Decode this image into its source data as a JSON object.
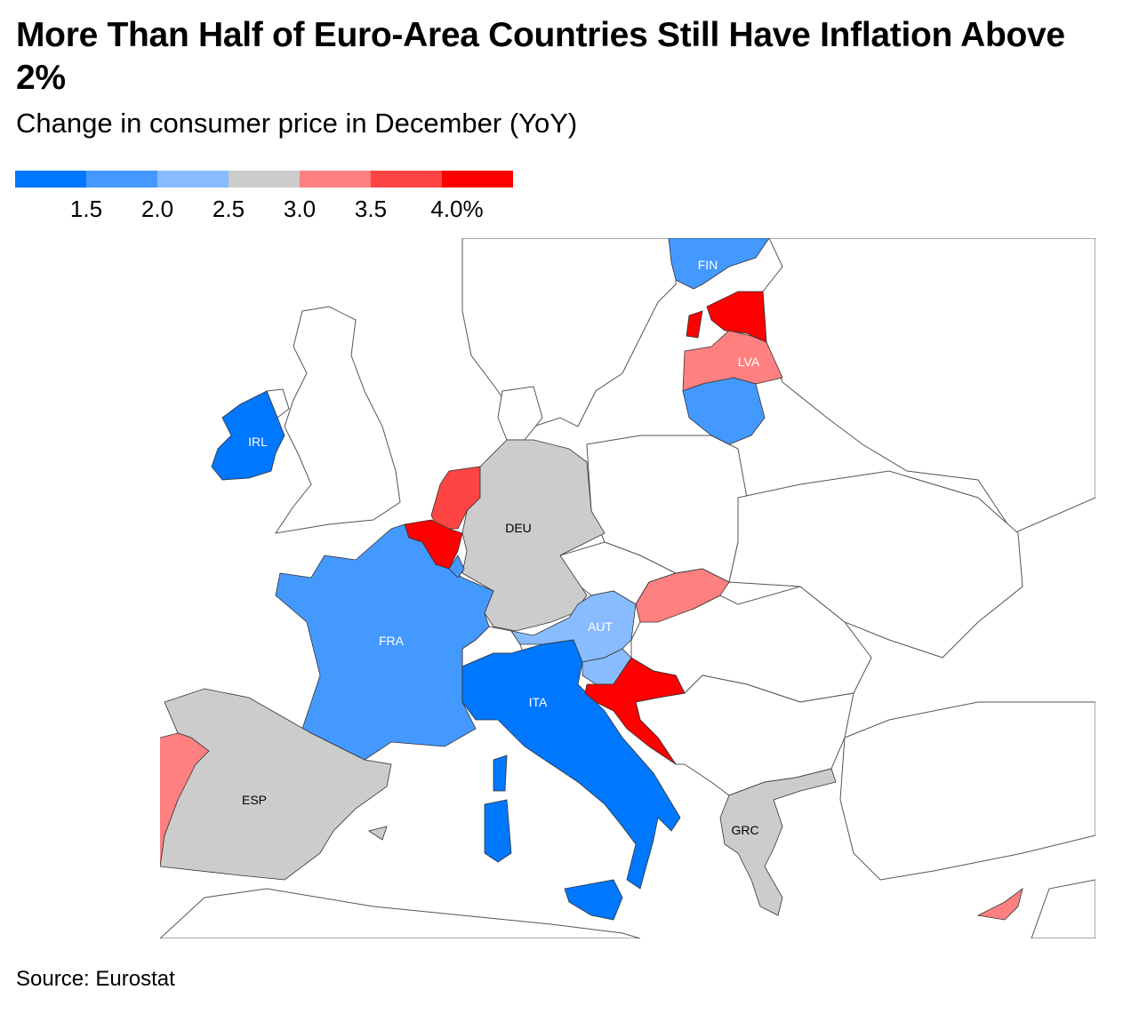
{
  "title": "More Than Half of Euro-Area Countries Still Have Inflation Above 2%",
  "subtitle": "Change in consumer price in December (YoY)",
  "legend": {
    "colors": [
      "#0077ff",
      "#4499ff",
      "#88bbff",
      "#cccccc",
      "#ff8080",
      "#ff4444",
      "#ff0000"
    ],
    "ticks": [
      "1.5",
      "2.0",
      "2.5",
      "3.0",
      "3.5",
      "4.0%"
    ]
  },
  "countries": {
    "FIN": {
      "label": "FIN",
      "color": "#4499ff"
    },
    "EST": {
      "color": "#ff0000"
    },
    "LVA": {
      "label": "LVA",
      "color": "#ff8080"
    },
    "LTU": {
      "color": "#4499ff"
    },
    "IRL": {
      "label": "IRL",
      "color": "#0077ff"
    },
    "NLD": {
      "color": "#ff4444"
    },
    "BEL": {
      "color": "#ff0000"
    },
    "LUX": {
      "color": "#4499ff"
    },
    "DEU": {
      "label": "DEU",
      "color": "#cccccc"
    },
    "FRA": {
      "label": "FRA",
      "color": "#4499ff"
    },
    "AUT": {
      "label": "AUT",
      "color": "#88bbff"
    },
    "SVN": {
      "color": "#88bbff"
    },
    "HRV": {
      "color": "#ff0000"
    },
    "SVK": {
      "color": "#ff8080"
    },
    "ITA": {
      "label": "ITA",
      "color": "#0077ff"
    },
    "ESP": {
      "label": "ESP",
      "color": "#cccccc"
    },
    "PRT": {
      "color": "#ff8080"
    },
    "GRC": {
      "label": "GRC",
      "color": "#cccccc"
    },
    "CYP": {
      "color": "#ff8080"
    }
  },
  "source": "Source: Eurostat"
}
